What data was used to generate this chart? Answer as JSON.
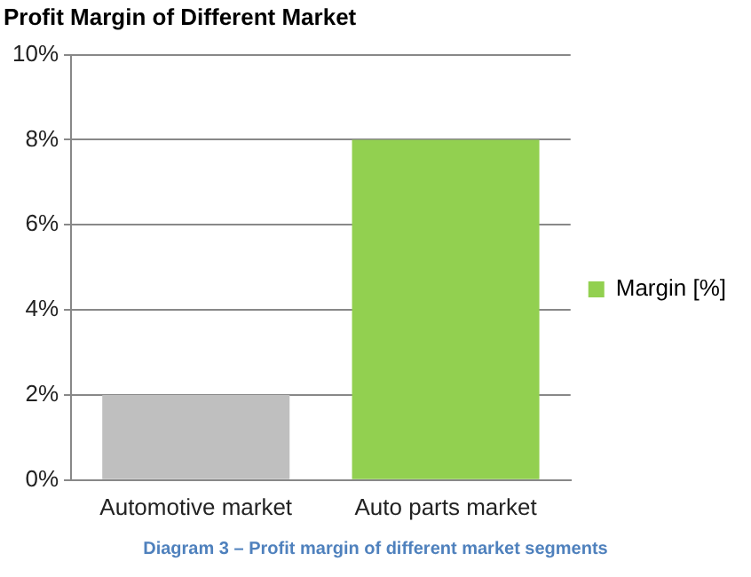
{
  "chart_data": {
    "type": "bar",
    "title": "Profit Margin of Different Market",
    "categories": [
      "Automotive market",
      "Auto parts market"
    ],
    "series": [
      {
        "name": "Margin [%]",
        "color": "#92d050",
        "colors": [
          "#bfbfbf",
          "#92d050"
        ],
        "values": [
          2,
          8
        ]
      }
    ],
    "ylim": [
      0,
      10
    ],
    "yticks": [
      {
        "value": 0,
        "label": "0%"
      },
      {
        "value": 2,
        "label": "2%"
      },
      {
        "value": 4,
        "label": "4%"
      },
      {
        "value": 6,
        "label": "6%"
      },
      {
        "value": 8,
        "label": "8%"
      },
      {
        "value": 10,
        "label": "10%"
      }
    ],
    "grid": "y",
    "legend": "right",
    "annotations": [
      "Diagram 3 – Profit margin of different market segments"
    ]
  }
}
